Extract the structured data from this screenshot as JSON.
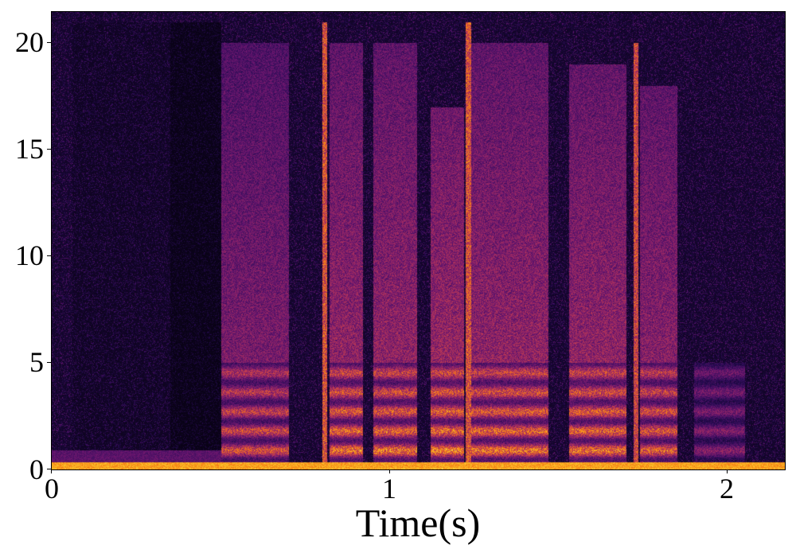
{
  "chart_data": {
    "type": "heatmap",
    "title": "",
    "xlabel": "Time(s)",
    "ylabel": "",
    "xlim": [
      0,
      2.17
    ],
    "ylim": [
      0,
      21.45
    ],
    "xticks": [
      0,
      1,
      2
    ],
    "yticks": [
      0,
      5,
      10,
      15,
      20
    ],
    "colormap": "inferno",
    "grid": false,
    "segments": [
      {
        "t0": 0.5,
        "t1": 0.7,
        "fmax": 20,
        "strength": 0.62
      },
      {
        "t0": 0.8,
        "t1": 0.815,
        "fmax": 21,
        "strength": 0.8
      },
      {
        "t0": 0.82,
        "t1": 0.92,
        "fmax": 20,
        "strength": 0.72
      },
      {
        "t0": 0.95,
        "t1": 1.08,
        "fmax": 20,
        "strength": 0.72
      },
      {
        "t0": 1.12,
        "t1": 1.22,
        "fmax": 17,
        "strength": 0.75
      },
      {
        "t0": 1.225,
        "t1": 1.24,
        "fmax": 21,
        "strength": 0.8
      },
      {
        "t0": 1.24,
        "t1": 1.47,
        "fmax": 20,
        "strength": 0.72
      },
      {
        "t0": 1.53,
        "t1": 1.7,
        "fmax": 19,
        "strength": 0.72
      },
      {
        "t0": 1.72,
        "t1": 1.735,
        "fmax": 20,
        "strength": 0.75
      },
      {
        "t0": 1.74,
        "t1": 1.85,
        "fmax": 18,
        "strength": 0.68
      },
      {
        "t0": 1.9,
        "t1": 2.05,
        "fmax": 5,
        "strength": 0.4
      }
    ]
  }
}
